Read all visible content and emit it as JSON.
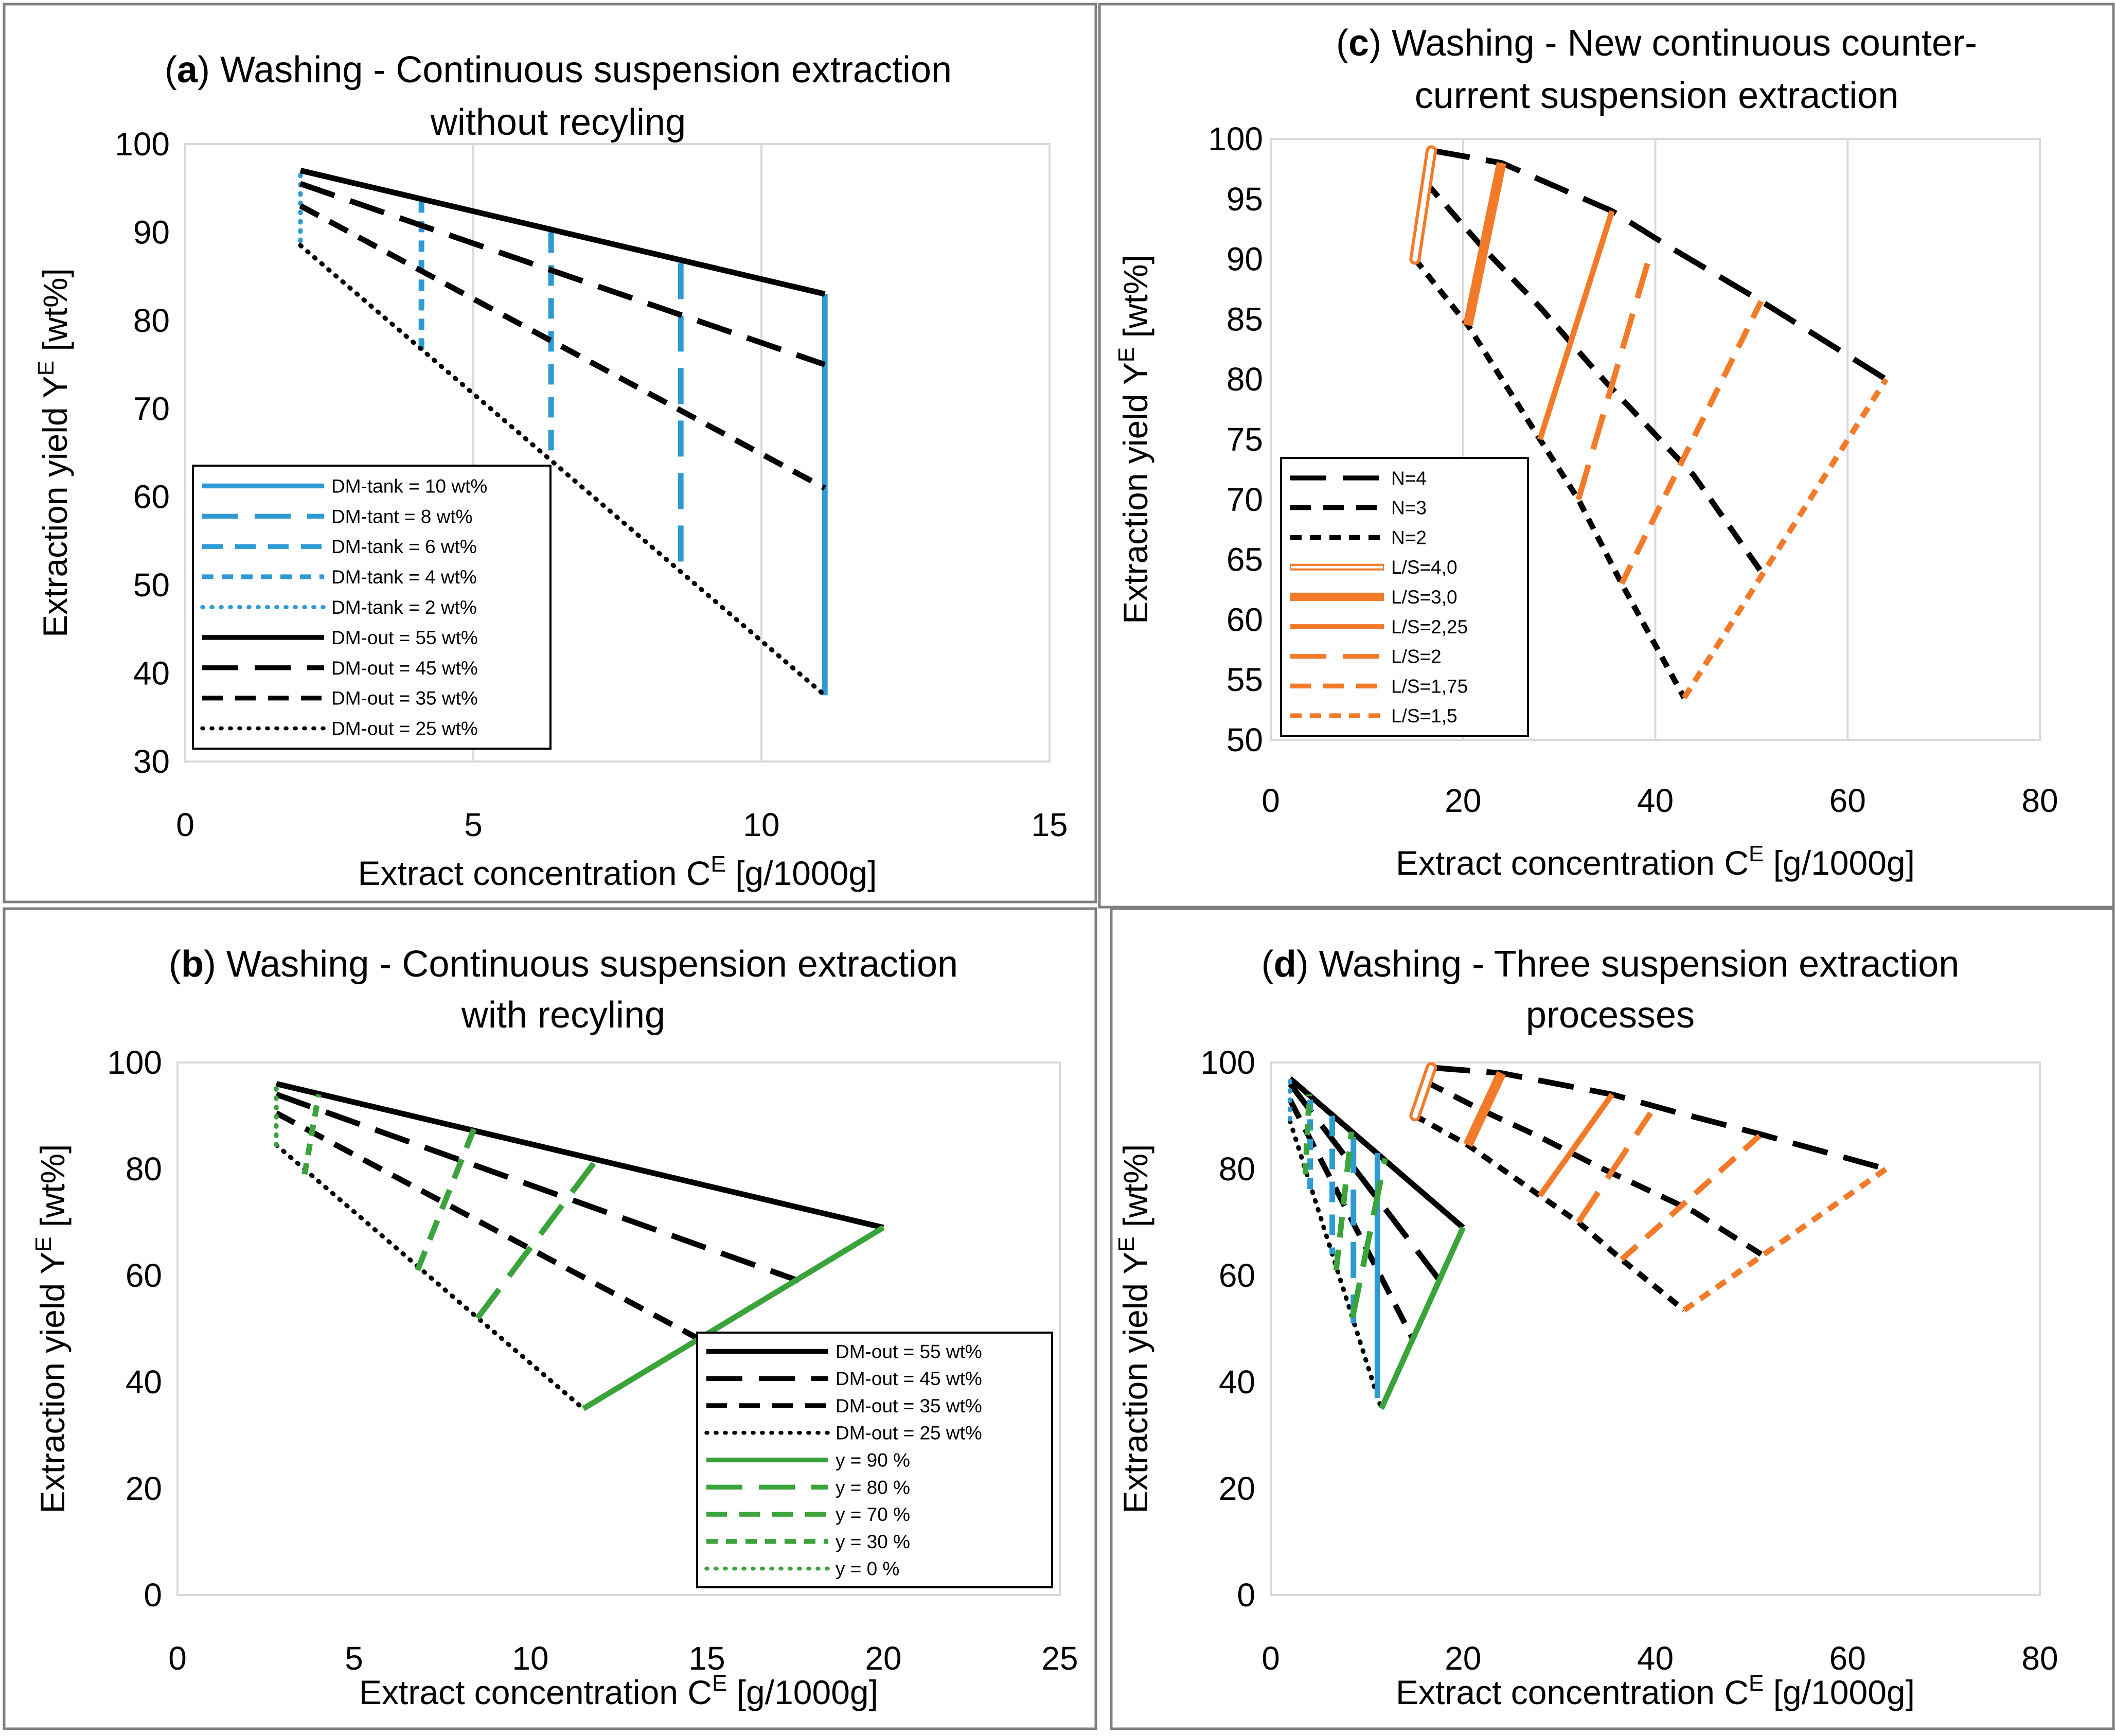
{
  "figure": {
    "axis_titles": {
      "x_main": "Extract concentration C",
      "x_sup": "E",
      "x_unit": " [g/1000g]",
      "y_main": "Extraction yield Y",
      "y_sup": "E",
      "y_unit": " [wt%]"
    }
  },
  "chart_data": [
    {
      "id": "a",
      "type": "line",
      "title_letter": "a",
      "title_rest": ") Washing - Continuous suspension extraction",
      "title_line2": "without recyling",
      "xlim": [
        0,
        15
      ],
      "ylim": [
        30,
        100
      ],
      "xticks": [
        0,
        5,
        10,
        15
      ],
      "yticks": [
        30,
        40,
        50,
        60,
        70,
        80,
        90,
        100
      ],
      "grid": "vertical",
      "legend_position": "lower-left",
      "series": [
        {
          "name": "DM-tank = 10 wt%",
          "color": "#2e9ad4",
          "style": "solid",
          "points": [
            [
              11.1,
              83
            ],
            [
              11.1,
              37.5
            ]
          ]
        },
        {
          "name": "DM-tant = 8 wt%",
          "color": "#2e9ad4",
          "style": "longdash",
          "points": [
            [
              8.6,
              86.5
            ],
            [
              8.6,
              51
            ]
          ]
        },
        {
          "name": "DM-tank = 6 wt%",
          "color": "#2e9ad4",
          "style": "dash",
          "points": [
            [
              6.35,
              90
            ],
            [
              6.35,
              64
            ]
          ]
        },
        {
          "name": "DM-tank = 4 wt%",
          "color": "#2e9ad4",
          "style": "shortdash",
          "points": [
            [
              4.1,
              93.5
            ],
            [
              4.1,
              76.5
            ]
          ]
        },
        {
          "name": "DM-tank = 2 wt%",
          "color": "#2e9ad4",
          "style": "dot",
          "points": [
            [
              2.0,
              96.5
            ],
            [
              2.0,
              88.5
            ]
          ]
        },
        {
          "name": "DM-out = 55 wt%",
          "color": "#000000",
          "style": "solid",
          "points": [
            [
              2.0,
              97
            ],
            [
              11.1,
              83
            ]
          ]
        },
        {
          "name": "DM-out = 45 wt%",
          "color": "#000000",
          "style": "longdash",
          "points": [
            [
              2.0,
              95.5
            ],
            [
              11.1,
              75
            ]
          ]
        },
        {
          "name": "DM-out = 35 wt%",
          "color": "#000000",
          "style": "dash",
          "points": [
            [
              2.0,
              93
            ],
            [
              11.1,
              61
            ]
          ]
        },
        {
          "name": "DM-out = 25 wt%",
          "color": "#000000",
          "style": "dot",
          "points": [
            [
              2.0,
              88.5
            ],
            [
              11.1,
              37.5
            ]
          ]
        }
      ]
    },
    {
      "id": "b",
      "type": "line",
      "title_letter": "b",
      "title_rest": ") Washing - Continuous suspension extraction",
      "title_line2": "with recyling",
      "xlim": [
        0,
        25
      ],
      "ylim": [
        0,
        100
      ],
      "xticks": [
        0,
        5,
        10,
        15,
        20,
        25
      ],
      "yticks": [
        0,
        20,
        40,
        60,
        80,
        100
      ],
      "grid": "none",
      "legend_position": "lower-right",
      "series": [
        {
          "name": "DM-out = 55 wt%",
          "color": "#000000",
          "style": "solid",
          "points": [
            [
              2.8,
              96
            ],
            [
              20.0,
              69
            ]
          ]
        },
        {
          "name": "DM-out = 45 wt%",
          "color": "#000000",
          "style": "longdash",
          "points": [
            [
              2.8,
              94
            ],
            [
              17.6,
              59
            ]
          ]
        },
        {
          "name": "DM-out = 35 wt%",
          "color": "#000000",
          "style": "dash",
          "points": [
            [
              2.8,
              90.5
            ],
            [
              14.8,
              48
            ]
          ]
        },
        {
          "name": "DM-out = 25 wt%",
          "color": "#000000",
          "style": "dot",
          "points": [
            [
              2.8,
              84.5
            ],
            [
              11.5,
              35
            ]
          ]
        },
        {
          "name": "y = 90 %",
          "color": "#3aa33a",
          "style": "solid",
          "points": [
            [
              11.5,
              35
            ],
            [
              20.0,
              69
            ]
          ]
        },
        {
          "name": "y = 80 %",
          "color": "#3aa33a",
          "style": "longdash",
          "points": [
            [
              8.5,
              52
            ],
            [
              11.9,
              82
            ]
          ]
        },
        {
          "name": "y = 70 %",
          "color": "#3aa33a",
          "style": "dash",
          "points": [
            [
              6.8,
              61
            ],
            [
              8.4,
              87.5
            ]
          ]
        },
        {
          "name": "y = 30 %",
          "color": "#3aa33a",
          "style": "shortdash",
          "points": [
            [
              3.6,
              79
            ],
            [
              4.0,
              94
            ]
          ]
        },
        {
          "name": "y = 0 %",
          "color": "#3aa33a",
          "style": "dot",
          "points": [
            [
              2.8,
              84.5
            ],
            [
              2.8,
              96
            ]
          ]
        }
      ]
    },
    {
      "id": "c",
      "type": "line",
      "title_letter": "c",
      "title_rest": ") Washing - New continuous counter-",
      "title_line2": "current suspension extraction",
      "xlim": [
        0,
        80
      ],
      "ylim": [
        50,
        100
      ],
      "xticks": [
        0,
        20,
        40,
        60,
        80
      ],
      "yticks": [
        50,
        55,
        60,
        65,
        70,
        75,
        80,
        85,
        90,
        95,
        100
      ],
      "grid": "vertical",
      "legend_position": "lower-left",
      "series": [
        {
          "name": "N=4",
          "color": "#000000",
          "style": "longdash",
          "points": [
            [
              17,
              99
            ],
            [
              24,
              98
            ],
            [
              35.5,
              94
            ],
            [
              41.5,
              91
            ],
            [
              51,
              86.5
            ],
            [
              64,
              80
            ]
          ]
        },
        {
          "name": "N=3",
          "color": "#000000",
          "style": "dash",
          "points": [
            [
              16,
              96.5
            ],
            [
              22,
              91
            ],
            [
              28,
              86
            ],
            [
              34,
              80.5
            ],
            [
              44,
              72
            ],
            [
              51,
              64
            ]
          ]
        },
        {
          "name": "N=2",
          "color": "#000000",
          "style": "shortdash",
          "points": [
            [
              15,
              90
            ],
            [
              20.5,
              84.5
            ],
            [
              28,
              75
            ],
            [
              32,
              70
            ],
            [
              36.5,
              63
            ],
            [
              43,
              53.5
            ]
          ]
        },
        {
          "name": "L/S=4,0",
          "color": "#f27a28",
          "style": "double",
          "points": [
            [
              15,
              90
            ],
            [
              16.7,
              99
            ]
          ]
        },
        {
          "name": "L/S=3,0",
          "color": "#f27a28",
          "style": "thick",
          "points": [
            [
              20.5,
              84.5
            ],
            [
              24,
              98
            ]
          ]
        },
        {
          "name": "L/S=2,25",
          "color": "#f27a28",
          "style": "solid",
          "points": [
            [
              28,
              75
            ],
            [
              35.5,
              94
            ]
          ]
        },
        {
          "name": "L/S=2",
          "color": "#f27a28",
          "style": "longdash",
          "points": [
            [
              32,
              70
            ],
            [
              39.5,
              90.5
            ]
          ]
        },
        {
          "name": "L/S=1,75",
          "color": "#f27a28",
          "style": "dash",
          "points": [
            [
              36.5,
              63
            ],
            [
              51,
              86.5
            ]
          ]
        },
        {
          "name": "L/S=1,5",
          "color": "#f27a28",
          "style": "shortdash",
          "points": [
            [
              43,
              53.5
            ],
            [
              64,
              80
            ]
          ]
        }
      ]
    },
    {
      "id": "d",
      "type": "line",
      "title_letter": "d",
      "title_rest": ") Washing - Three suspension extraction",
      "title_line2": "processes",
      "xlim": [
        0,
        80
      ],
      "ylim": [
        0,
        100
      ],
      "xticks": [
        0,
        20,
        40,
        60,
        80
      ],
      "yticks": [
        0,
        20,
        40,
        60,
        80,
        100
      ],
      "grid": "none",
      "legend_position": "none",
      "series": [
        {
          "name": "DM-out = 55 wt%",
          "color": "#000000",
          "style": "solid",
          "points": [
            [
              2,
              97
            ],
            [
              20,
              69
            ]
          ]
        },
        {
          "name": "DM-out = 45 wt%",
          "color": "#000000",
          "style": "longdash",
          "points": [
            [
              2,
              96
            ],
            [
              17.6,
              59
            ]
          ]
        },
        {
          "name": "DM-out = 35 wt%",
          "color": "#000000",
          "style": "dash",
          "points": [
            [
              2,
              93
            ],
            [
              14.8,
              48
            ]
          ]
        },
        {
          "name": "DM-out = 25 wt%",
          "color": "#000000",
          "style": "dot",
          "points": [
            [
              2,
              89
            ],
            [
              11.5,
              35
            ]
          ]
        },
        {
          "name": "DM-tank = 10 wt%",
          "color": "#2e9ad4",
          "style": "solid",
          "points": [
            [
              11.1,
              83
            ],
            [
              11.1,
              37
            ]
          ]
        },
        {
          "name": "DM-tant = 8 wt%",
          "color": "#2e9ad4",
          "style": "longdash",
          "points": [
            [
              8.6,
              86
            ],
            [
              8.6,
              51
            ]
          ]
        },
        {
          "name": "DM-tank = 6 wt%",
          "color": "#2e9ad4",
          "style": "dash",
          "points": [
            [
              6.4,
              90
            ],
            [
              6.4,
              64
            ]
          ]
        },
        {
          "name": "DM-tank = 4 wt%",
          "color": "#2e9ad4",
          "style": "shortdash",
          "points": [
            [
              4.1,
              93
            ],
            [
              4.1,
              76
            ]
          ]
        },
        {
          "name": "DM-tank = 2 wt%",
          "color": "#2e9ad4",
          "style": "dot",
          "points": [
            [
              2,
              96.5
            ],
            [
              2,
              89
            ]
          ]
        },
        {
          "name": "y = 90 %",
          "color": "#3aa33a",
          "style": "solid",
          "points": [
            [
              11.5,
              35
            ],
            [
              20,
              69
            ]
          ]
        },
        {
          "name": "y = 80 %",
          "color": "#3aa33a",
          "style": "longdash",
          "points": [
            [
              8.5,
              52
            ],
            [
              11.9,
              82
            ]
          ]
        },
        {
          "name": "y = 70 %",
          "color": "#3aa33a",
          "style": "dash",
          "points": [
            [
              6.8,
              61
            ],
            [
              8.4,
              87
            ]
          ]
        },
        {
          "name": "y = 30 %",
          "color": "#3aa33a",
          "style": "shortdash",
          "points": [
            [
              3.6,
              79
            ],
            [
              4,
              94
            ]
          ]
        },
        {
          "name": "N=4",
          "color": "#000000",
          "style": "longdash",
          "points": [
            [
              17,
              99
            ],
            [
              24,
              98
            ],
            [
              35.5,
              94
            ],
            [
              41.5,
              91
            ],
            [
              51,
              86.5
            ],
            [
              64,
              80
            ]
          ]
        },
        {
          "name": "N=3",
          "color": "#000000",
          "style": "dash",
          "points": [
            [
              16,
              96.5
            ],
            [
              22,
              91
            ],
            [
              28,
              86
            ],
            [
              34,
              80.5
            ],
            [
              44,
              72
            ],
            [
              51,
              64
            ]
          ]
        },
        {
          "name": "N=2",
          "color": "#000000",
          "style": "shortdash",
          "points": [
            [
              15,
              90
            ],
            [
              20.5,
              84.5
            ],
            [
              28,
              75
            ],
            [
              32,
              70
            ],
            [
              36.5,
              63
            ],
            [
              43,
              53.5
            ]
          ]
        },
        {
          "name": "L/S=4,0",
          "color": "#f27a28",
          "style": "double",
          "points": [
            [
              15,
              90
            ],
            [
              16.7,
              99
            ]
          ]
        },
        {
          "name": "L/S=3,0",
          "color": "#f27a28",
          "style": "thick",
          "points": [
            [
              20.5,
              84.5
            ],
            [
              24,
              98
            ]
          ]
        },
        {
          "name": "L/S=2,25",
          "color": "#f27a28",
          "style": "solid",
          "points": [
            [
              28,
              75
            ],
            [
              35.5,
              94
            ]
          ]
        },
        {
          "name": "L/S=2",
          "color": "#f27a28",
          "style": "longdash",
          "points": [
            [
              32,
              70
            ],
            [
              39.5,
              90.5
            ]
          ]
        },
        {
          "name": "L/S=1,75",
          "color": "#f27a28",
          "style": "dash",
          "points": [
            [
              36.5,
              63
            ],
            [
              51,
              86.5
            ]
          ]
        },
        {
          "name": "L/S=1,5",
          "color": "#f27a28",
          "style": "shortdash",
          "points": [
            [
              43,
              53.5
            ],
            [
              64,
              80
            ]
          ]
        }
      ]
    }
  ]
}
